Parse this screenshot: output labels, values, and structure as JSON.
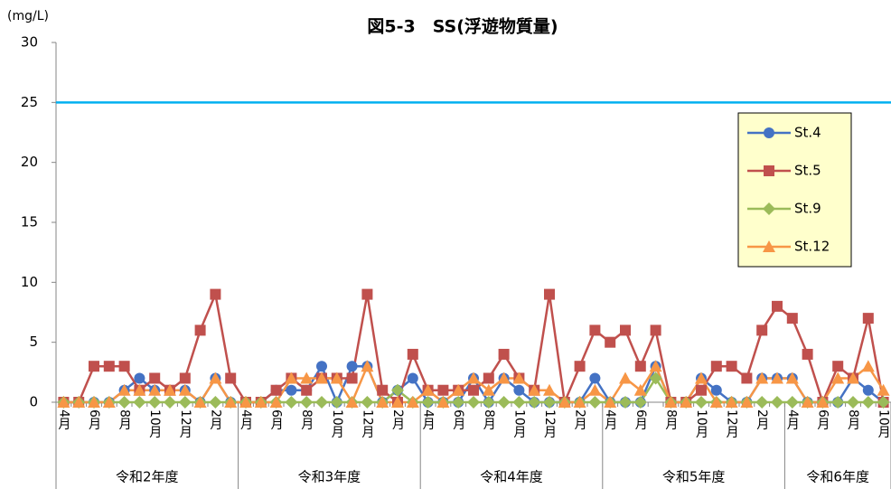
{
  "chart_data": {
    "type": "line",
    "title": "図5-3　SS(浮遊物質量)",
    "y_label": "(mg/L)",
    "categories": [
      "4月",
      null,
      "6月",
      null,
      "8月",
      null,
      "10月",
      null,
      "12月",
      null,
      "2月",
      null,
      "4月",
      null,
      "6月",
      null,
      "8月",
      null,
      "10月",
      null,
      "12月",
      null,
      "2月",
      null,
      "4月",
      null,
      "6月",
      null,
      "8月",
      null,
      "10月",
      null,
      "12月",
      null,
      "2月",
      null,
      "4月",
      null,
      "6月",
      null,
      "8月",
      null,
      "10月",
      null,
      "12月",
      null,
      "2月",
      null,
      "4月",
      null,
      "6月",
      null,
      "8月",
      null,
      "10月"
    ],
    "groups": [
      {
        "label": "令和2年度",
        "months": 12
      },
      {
        "label": "令和3年度",
        "months": 12
      },
      {
        "label": "令和4年度",
        "months": 12
      },
      {
        "label": "令和5年度",
        "months": 12
      },
      {
        "label": "令和6年度",
        "months": 7
      }
    ],
    "series": [
      {
        "name": "St.4",
        "color": "#4472c4",
        "marker": "circle",
        "values": [
          0,
          0,
          0,
          0,
          1,
          2,
          1,
          1,
          1,
          0,
          2,
          0,
          0,
          0,
          1,
          1,
          1,
          3,
          0,
          3,
          3,
          0,
          1,
          2,
          0,
          0,
          0,
          2,
          0,
          2,
          1,
          0,
          0,
          0,
          0,
          2,
          0,
          0,
          0,
          3,
          0,
          0,
          2,
          1,
          0,
          0,
          2,
          2,
          2,
          0,
          0,
          0,
          2,
          1,
          0
        ]
      },
      {
        "name": "St.5",
        "color": "#c0504d",
        "marker": "square",
        "values": [
          0,
          0,
          3,
          3,
          3,
          1,
          2,
          1,
          2,
          6,
          9,
          2,
          0,
          0,
          1,
          2,
          1,
          2,
          2,
          2,
          9,
          1,
          0,
          4,
          1,
          1,
          1,
          1,
          2,
          4,
          2,
          1,
          9,
          0,
          3,
          6,
          5,
          6,
          3,
          6,
          0,
          0,
          1,
          3,
          3,
          2,
          6,
          8,
          7,
          4,
          0,
          3,
          2,
          7,
          0
        ]
      },
      {
        "name": "St.9",
        "color": "#9bbb59",
        "marker": "diamond",
        "values": [
          0,
          0,
          0,
          0,
          0,
          0,
          0,
          0,
          0,
          0,
          0,
          0,
          0,
          0,
          0,
          0,
          0,
          0,
          0,
          0,
          0,
          0,
          1,
          0,
          0,
          0,
          0,
          0,
          0,
          0,
          0,
          0,
          0,
          0,
          0,
          0,
          0,
          0,
          0,
          2,
          0,
          0,
          0,
          0,
          0,
          0,
          0,
          0,
          0,
          0,
          0,
          0,
          0,
          0,
          0
        ]
      },
      {
        "name": "St.12",
        "color": "#f79646",
        "marker": "triangle",
        "values": [
          0,
          0,
          0,
          0,
          1,
          1,
          1,
          1,
          1,
          0,
          2,
          0,
          0,
          0,
          0,
          2,
          2,
          2,
          2,
          0,
          3,
          0,
          0,
          0,
          1,
          0,
          1,
          2,
          1,
          2,
          2,
          1,
          1,
          0,
          0,
          1,
          0,
          2,
          1,
          3,
          0,
          0,
          2,
          0,
          0,
          0,
          2,
          2,
          2,
          0,
          0,
          2,
          2,
          3,
          1
        ]
      }
    ],
    "hlines": [
      {
        "value": 25,
        "color": "#00b0f0"
      }
    ],
    "ylim": [
      0,
      30
    ],
    "yticks": [
      0,
      5,
      10,
      15,
      20,
      25,
      30
    ],
    "legend": "upper right"
  }
}
